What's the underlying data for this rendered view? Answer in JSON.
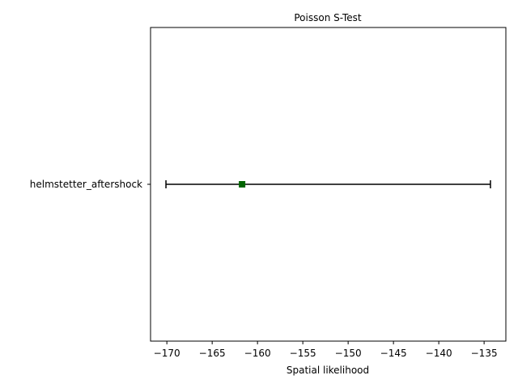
{
  "chart_data": {
    "type": "errorbar",
    "title": "Poisson S-Test",
    "xlabel": "Spatial likelihood",
    "ylabel": "",
    "xlim": [
      -171.8,
      -132.6
    ],
    "xticks": [
      -170,
      -165,
      -160,
      -155,
      -150,
      -145,
      -140,
      -135
    ],
    "xtick_labels": [
      "−170",
      "−165",
      "−160",
      "−155",
      "−150",
      "−145",
      "−140",
      "−135"
    ],
    "categories": [
      "helmstetter_aftershock"
    ],
    "series": [
      {
        "observed": [
          -161.7
        ],
        "lower": [
          -170.1
        ],
        "upper": [
          -134.3
        ],
        "marker": "square",
        "marker_color": "#006400",
        "bar_color": "#000000"
      }
    ],
    "grid": false
  }
}
